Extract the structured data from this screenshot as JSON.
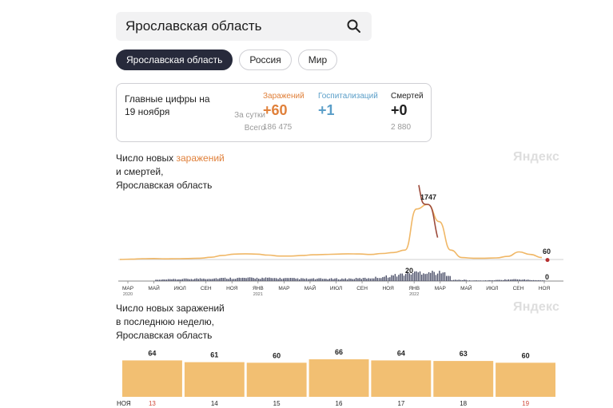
{
  "search": {
    "value": "Ярославская область"
  },
  "chips": [
    {
      "label": "Ярославская область",
      "active": true
    },
    {
      "label": "Россия",
      "active": false
    },
    {
      "label": "Мир",
      "active": false
    }
  ],
  "stats": {
    "heading": "Главные цифры на 19 ноября",
    "row_day": "За сутки",
    "row_total": "Всего",
    "cols": [
      {
        "label": "Заражений",
        "value": "+60",
        "total": "186 475",
        "color": "#e0803a"
      },
      {
        "label": "Госпитализаций",
        "value": "+1",
        "total": "",
        "color": "#5a9ec8"
      },
      {
        "label": "Смертей",
        "value": "+0",
        "total": "2 880",
        "color": "#222222"
      }
    ]
  },
  "watermark": "Яндекс",
  "chart1": {
    "title_pre": "Число новых ",
    "title_hl": "заражений",
    "title_line2": "и смертей,",
    "title_line3": "Ярославская область"
  },
  "chart2": {
    "title_line1": "Число новых заражений",
    "title_line2": "в последнюю неделю,",
    "title_line3": "Ярославская область"
  },
  "colors": {
    "orange": "#f0b766",
    "orange_text": "#e0803a",
    "dark": "#3b3f57",
    "red_dot": "#b53030",
    "bar": "#f2bf72"
  },
  "chart_data": [
    {
      "type": "line",
      "title": "Число новых заражений и смертей, Ярославская область",
      "series": [
        {
          "name": "заражений",
          "peak": 1747,
          "last": 60,
          "values": [
            2,
            10,
            25,
            30,
            20,
            25,
            30,
            40,
            70,
            130,
            170,
            180,
            170,
            140,
            110,
            110,
            130,
            150,
            160,
            170,
            180,
            175,
            160,
            190,
            220,
            300,
            1600,
            1747,
            1200,
            300,
            60,
            40,
            40,
            50,
            100,
            240,
            160,
            60
          ]
        },
        {
          "name": "смертей",
          "peak": 20,
          "last": 0
        }
      ],
      "x_ticks": [
        {
          "label": "МАР",
          "year": "2020"
        },
        {
          "label": "МАЙ"
        },
        {
          "label": "ИЮЛ"
        },
        {
          "label": "СЕН"
        },
        {
          "label": "НОЯ"
        },
        {
          "label": "ЯНВ",
          "year": "2021"
        },
        {
          "label": "МАР"
        },
        {
          "label": "МАЙ"
        },
        {
          "label": "ИЮЛ"
        },
        {
          "label": "СЕН"
        },
        {
          "label": "НОЯ"
        },
        {
          "label": "ЯНВ",
          "year": "2022"
        },
        {
          "label": "МАР"
        },
        {
          "label": "МАЙ"
        },
        {
          "label": "ИЮЛ"
        },
        {
          "label": "СЕН"
        },
        {
          "label": "НОЯ"
        }
      ]
    },
    {
      "type": "bar",
      "title": "Число новых заражений в последнюю неделю, Ярославская область",
      "month_label": "НОЯ",
      "categories": [
        "13",
        "14",
        "15",
        "16",
        "17",
        "18",
        "19"
      ],
      "values": [
        64,
        61,
        60,
        66,
        64,
        63,
        60
      ],
      "weekend": [
        true,
        false,
        false,
        false,
        false,
        false,
        true
      ]
    }
  ]
}
